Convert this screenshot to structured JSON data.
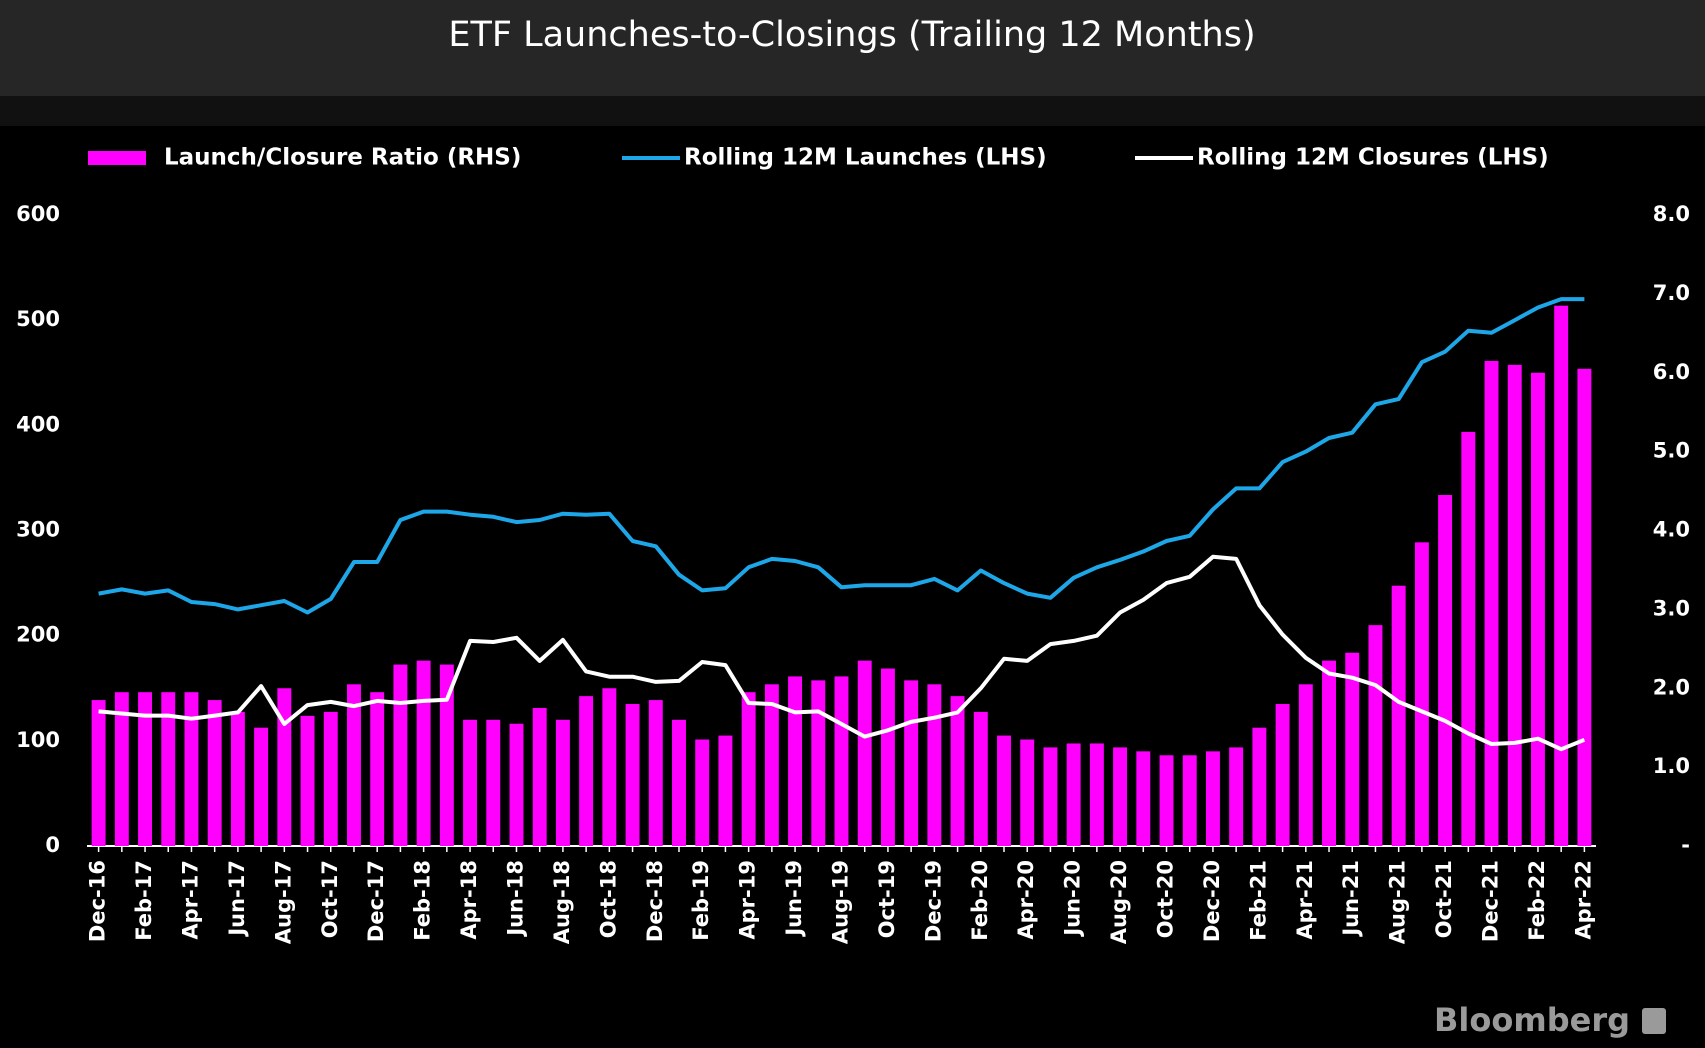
{
  "chart_data": {
    "type": "bar",
    "title": "ETF Launches-to-Closings (Trailing 12 Months)",
    "source": "Bloomberg",
    "categories": [
      "Dec-16",
      null,
      "Feb-17",
      null,
      "Apr-17",
      null,
      "Jun-17",
      null,
      "Aug-17",
      null,
      "Oct-17",
      null,
      "Dec-17",
      null,
      "Feb-18",
      null,
      "Apr-18",
      null,
      "Jun-18",
      null,
      "Aug-18",
      null,
      "Oct-18",
      null,
      "Dec-18",
      null,
      "Feb-19",
      null,
      "Apr-19",
      null,
      "Jun-19",
      null,
      "Aug-19",
      null,
      "Oct-19",
      null,
      "Dec-19",
      null,
      "Feb-20",
      null,
      "Apr-20",
      null,
      "Jun-20",
      null,
      "Aug-20",
      null,
      "Oct-20",
      null,
      "Dec-20",
      null,
      "Feb-21",
      null,
      "Apr-21",
      null,
      "Jun-21",
      null,
      "Aug-21",
      null,
      "Oct-21",
      null,
      "Dec-21",
      null,
      "Feb-22",
      null,
      "Apr-22"
    ],
    "series": [
      {
        "name": "Launch/Closure Ratio (RHS)",
        "type": "bar",
        "axis": "y2",
        "color": "#ff00ff",
        "values": [
          1.85,
          1.95,
          1.95,
          1.95,
          1.95,
          1.85,
          1.7,
          1.5,
          2.0,
          1.65,
          1.7,
          2.05,
          1.95,
          2.3,
          2.35,
          2.3,
          1.6,
          1.6,
          1.55,
          1.75,
          1.6,
          1.9,
          2.0,
          1.8,
          1.85,
          1.6,
          1.35,
          1.4,
          1.95,
          2.05,
          2.15,
          2.1,
          2.15,
          2.35,
          2.25,
          2.1,
          2.05,
          1.9,
          1.7,
          1.4,
          1.35,
          1.25,
          1.3,
          1.3,
          1.25,
          1.2,
          1.15,
          1.15,
          1.2,
          1.25,
          1.5,
          1.8,
          2.05,
          2.35,
          2.45,
          2.8,
          3.3,
          3.85,
          4.45,
          5.25,
          6.15,
          6.1,
          6.0,
          6.85,
          6.05
        ]
      },
      {
        "name": "Rolling 12M Launches (LHS)",
        "type": "line",
        "color": "#1ea7e8",
        "values": [
          240,
          244,
          240,
          243,
          232,
          230,
          225,
          229,
          233,
          222,
          235,
          270,
          270,
          310,
          318,
          318,
          315,
          313,
          308,
          310,
          316,
          315,
          316,
          290,
          285,
          258,
          243,
          245,
          265,
          273,
          271,
          265,
          246,
          248,
          248,
          248,
          254,
          243,
          262,
          250,
          240,
          236,
          255,
          265,
          272,
          280,
          290,
          295,
          320,
          340,
          340,
          365,
          375,
          388,
          393,
          420,
          425,
          460,
          470,
          490,
          488,
          500,
          512,
          520,
          520
        ]
      },
      {
        "name": "Rolling 12M Closures (LHS)",
        "type": "line",
        "color": "#ffffff",
        "values": [
          128,
          126,
          124,
          124,
          121,
          124,
          127,
          152,
          116,
          134,
          137,
          133,
          138,
          136,
          138,
          139,
          195,
          194,
          198,
          176,
          196,
          166,
          161,
          161,
          156,
          157,
          175,
          172,
          136,
          135,
          127,
          128,
          116,
          104,
          110,
          118,
          122,
          127,
          150,
          178,
          176,
          192,
          195,
          200,
          222,
          234,
          250,
          256,
          275,
          273,
          229,
          201,
          179,
          164,
          160,
          153,
          137,
          128,
          119,
          107,
          97,
          98,
          102,
          92,
          101
        ]
      }
    ],
    "ylim": [
      0,
      600
    ],
    "yticks": [
      0,
      100,
      200,
      300,
      400,
      500,
      600
    ],
    "y2lim": [
      0,
      8
    ],
    "y2ticks": [
      {
        "value": 0,
        "label": "-"
      },
      {
        "value": 1,
        "label": "1.0"
      },
      {
        "value": 2,
        "label": "2.0"
      },
      {
        "value": 3,
        "label": "3.0"
      },
      {
        "value": 4,
        "label": "4.0"
      },
      {
        "value": 5,
        "label": "5.0"
      },
      {
        "value": 6,
        "label": "6.0"
      },
      {
        "value": 7,
        "label": "7.0"
      },
      {
        "value": 8,
        "label": "8.0"
      }
    ],
    "grid": false,
    "legend": "top"
  }
}
